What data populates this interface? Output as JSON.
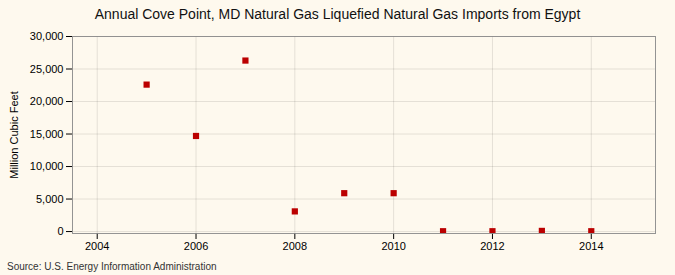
{
  "chart_data": {
    "type": "scatter",
    "title": "Annual Cove Point, MD Natural Gas Liquefied Natural Gas Imports from Egypt",
    "ylabel": "Million Cubic Feet",
    "source": "Source: U.S. Energy Information Administration",
    "x": [
      2005,
      2006,
      2007,
      2008,
      2009,
      2010,
      2011,
      2012,
      2013,
      2014
    ],
    "values": [
      22600,
      14700,
      26300,
      3100,
      5900,
      5900,
      50,
      50,
      100,
      50
    ],
    "color": "#bb0000",
    "marker": "square",
    "xlim": [
      2003.5,
      2015.3
    ],
    "ylim": [
      -300,
      30000
    ],
    "xticks": [
      2004,
      2006,
      2008,
      2010,
      2012,
      2014
    ],
    "yticks": [
      0,
      {
        "value": 5000,
        "label": "5,000"
      },
      {
        "value": 10000,
        "label": "10,000"
      },
      {
        "value": 15000,
        "label": "15,000"
      },
      {
        "value": 20000,
        "label": "20,000"
      },
      {
        "value": 25000,
        "label": "25,000"
      },
      {
        "value": 30000,
        "label": "30,000"
      }
    ],
    "grid": true
  }
}
